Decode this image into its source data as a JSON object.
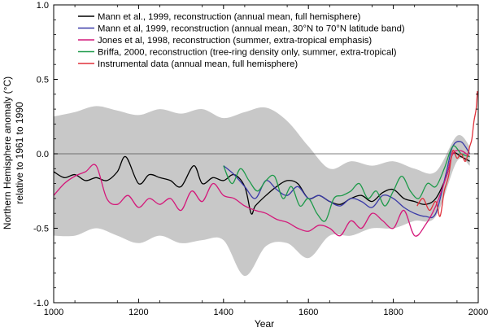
{
  "chart_data": {
    "type": "line",
    "xlabel": "Year",
    "ylabel_line1": "Northern Hemisphere anomaly (°C)",
    "ylabel_line2": "relative to 1961 to 1990",
    "xlim": [
      1000,
      2000
    ],
    "ylim": [
      -1.0,
      1.0
    ],
    "xticks": [
      1000,
      1200,
      1400,
      1600,
      1800,
      2000
    ],
    "xtick_labels": [
      "1000",
      "1200",
      "1400",
      "1600",
      "1800",
      "2000"
    ],
    "yticks": [
      -1.0,
      -0.5,
      0.0,
      0.5,
      1.0
    ],
    "ytick_labels": [
      "-1.0",
      "-0.5",
      "0.0",
      "0.5",
      "1.0"
    ],
    "zero_line": true,
    "legend_position": "top-left",
    "legend": [
      {
        "label": "Mann et al., 1999, reconstruction (annual mean, full hemisphere)",
        "color": "#000000"
      },
      {
        "label": "Mann et al, 1999, reconstruction (annual mean, 30°N to 70°N latitude band)",
        "color": "#3a3aa8"
      },
      {
        "label": "Jones et al, 1998, reconstruction (summer, extra-tropical emphasis)",
        "color": "#d4187a"
      },
      {
        "label": "Briffa, 2000, reconstruction (tree-ring density only, summer, extra-tropical)",
        "color": "#1e9a4a"
      },
      {
        "label": "Instrumental data (annual mean, full hemisphere)",
        "color": "#e0303a"
      }
    ],
    "uncertainty_band": {
      "color": "#c8c8c8",
      "x": [
        1000,
        1050,
        1100,
        1150,
        1200,
        1250,
        1300,
        1350,
        1400,
        1450,
        1500,
        1550,
        1600,
        1650,
        1700,
        1750,
        1800,
        1850,
        1900,
        1950,
        1980
      ],
      "upper": [
        0.25,
        0.28,
        0.32,
        0.29,
        0.26,
        0.3,
        0.27,
        0.3,
        0.24,
        0.28,
        0.31,
        0.22,
        0.05,
        -0.1,
        -0.05,
        -0.08,
        -0.05,
        -0.1,
        -0.12,
        0.12,
        0.05
      ],
      "lower": [
        -0.55,
        -0.55,
        -0.5,
        -0.55,
        -0.6,
        -0.55,
        -0.6,
        -0.58,
        -0.58,
        -0.82,
        -0.62,
        -0.6,
        -0.7,
        -0.55,
        -0.55,
        -0.5,
        -0.5,
        -0.45,
        -0.42,
        -0.05,
        -0.08
      ]
    },
    "series": [
      {
        "name": "Mann et al., 1999, reconstruction (annual mean, full hemisphere)",
        "color": "#000000",
        "x": [
          1000,
          1025,
          1050,
          1075,
          1100,
          1125,
          1150,
          1170,
          1200,
          1225,
          1250,
          1275,
          1300,
          1330,
          1350,
          1375,
          1400,
          1425,
          1450,
          1465,
          1475,
          1500,
          1525,
          1550,
          1575,
          1600,
          1625,
          1650,
          1675,
          1700,
          1725,
          1750,
          1775,
          1800,
          1825,
          1850,
          1875,
          1900,
          1925,
          1940,
          1960,
          1980
        ],
        "y": [
          -0.12,
          -0.16,
          -0.14,
          -0.18,
          -0.16,
          -0.18,
          -0.12,
          -0.02,
          -0.2,
          -0.14,
          -0.16,
          -0.18,
          -0.22,
          -0.08,
          -0.2,
          -0.16,
          -0.18,
          -0.14,
          -0.22,
          -0.4,
          -0.35,
          -0.28,
          -0.22,
          -0.18,
          -0.2,
          -0.3,
          -0.28,
          -0.32,
          -0.34,
          -0.3,
          -0.28,
          -0.32,
          -0.26,
          -0.24,
          -0.3,
          -0.32,
          -0.34,
          -0.3,
          -0.15,
          0.0,
          -0.02,
          -0.05
        ]
      },
      {
        "name": "Mann et al, 1999, reconstruction (annual mean, 30°N to 70°N latitude band)",
        "color": "#3a3aa8",
        "x": [
          1400,
          1425,
          1450,
          1475,
          1500,
          1525,
          1550,
          1575,
          1600,
          1625,
          1650,
          1675,
          1700,
          1725,
          1750,
          1775,
          1800,
          1825,
          1850,
          1875,
          1900,
          1925,
          1940,
          1960,
          1980
        ],
        "y": [
          -0.08,
          -0.14,
          -0.22,
          -0.3,
          -0.18,
          -0.24,
          -0.28,
          -0.22,
          -0.3,
          -0.28,
          -0.32,
          -0.35,
          -0.3,
          -0.32,
          -0.36,
          -0.28,
          -0.3,
          -0.36,
          -0.4,
          -0.42,
          -0.4,
          -0.12,
          0.05,
          0.08,
          0.0
        ]
      },
      {
        "name": "Jones et al, 1998, reconstruction (summer, extra-tropical emphasis)",
        "color": "#d4187a",
        "x": [
          1000,
          1025,
          1050,
          1075,
          1100,
          1125,
          1150,
          1175,
          1200,
          1225,
          1250,
          1275,
          1300,
          1325,
          1350,
          1375,
          1400,
          1425,
          1450,
          1475,
          1500,
          1525,
          1550,
          1575,
          1600,
          1625,
          1650,
          1675,
          1700,
          1725,
          1750,
          1775,
          1800,
          1825,
          1850,
          1875,
          1900,
          1925,
          1940,
          1960,
          1980
        ],
        "y": [
          -0.28,
          -0.2,
          -0.15,
          -0.12,
          -0.08,
          -0.3,
          -0.34,
          -0.28,
          -0.36,
          -0.3,
          -0.34,
          -0.3,
          -0.38,
          -0.25,
          -0.32,
          -0.2,
          -0.28,
          -0.3,
          -0.35,
          -0.38,
          -0.4,
          -0.44,
          -0.46,
          -0.5,
          -0.52,
          -0.48,
          -0.5,
          -0.55,
          -0.45,
          -0.5,
          -0.4,
          -0.45,
          -0.5,
          -0.38,
          -0.55,
          -0.48,
          -0.35,
          -0.15,
          0.0,
          0.02,
          -0.02
        ]
      },
      {
        "name": "Briffa, 2000, reconstruction (tree-ring density only, summer, extra-tropical)",
        "color": "#1e9a4a",
        "x": [
          1400,
          1420,
          1440,
          1460,
          1480,
          1500,
          1520,
          1540,
          1560,
          1580,
          1600,
          1620,
          1640,
          1660,
          1680,
          1700,
          1720,
          1740,
          1760,
          1780,
          1800,
          1820,
          1840,
          1860,
          1880,
          1900,
          1920,
          1940,
          1960,
          1980
        ],
        "y": [
          -0.08,
          -0.2,
          -0.1,
          -0.18,
          -0.25,
          -0.18,
          -0.15,
          -0.3,
          -0.22,
          -0.35,
          -0.3,
          -0.4,
          -0.45,
          -0.3,
          -0.28,
          -0.25,
          -0.2,
          -0.3,
          -0.25,
          -0.35,
          -0.25,
          -0.15,
          -0.25,
          -0.3,
          -0.2,
          -0.22,
          -0.1,
          0.05,
          0.0,
          -0.02
        ]
      },
      {
        "name": "Instrumental data (annual mean, full hemisphere)",
        "color": "#e0303a",
        "x": [
          1856,
          1870,
          1885,
          1900,
          1910,
          1920,
          1930,
          1940,
          1950,
          1960,
          1970,
          1980,
          1985,
          1990,
          1995,
          1998
        ],
        "y": [
          -0.35,
          -0.3,
          -0.38,
          -0.32,
          -0.42,
          -0.25,
          -0.15,
          0.02,
          -0.03,
          0.0,
          -0.05,
          0.05,
          0.1,
          0.22,
          0.3,
          0.42
        ]
      }
    ]
  }
}
